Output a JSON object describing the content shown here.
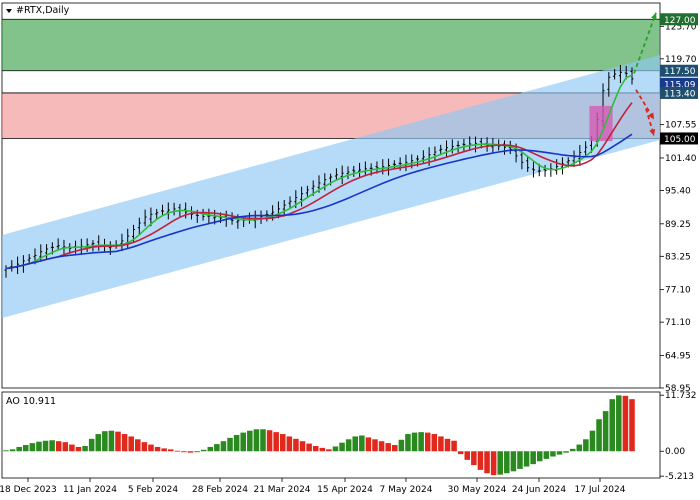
{
  "chart_data": {
    "type": "candlestick",
    "symbol_title": "#RTX,Daily",
    "price_axis": {
      "ylim": [
        58.95,
        130.0
      ],
      "ticks": [
        "125.70",
        "119.70",
        "107.55",
        "101.40",
        "95.40",
        "89.25",
        "83.25",
        "77.10",
        "71.10",
        "64.95",
        "58.95"
      ],
      "badges": [
        {
          "label": "127.00",
          "color": "#1f6f2f"
        },
        {
          "label": "117.50",
          "color": "#1f4f6f"
        },
        {
          "label": "115.09",
          "color": "#1a3a8c"
        },
        {
          "label": "113.40",
          "color": "#1f4f6f"
        },
        {
          "label": "105.00",
          "color": "#000000"
        }
      ]
    },
    "x_axis": {
      "categories": [
        "18 Dec 2023",
        "11 Jan 2024",
        "5 Feb 2024",
        "28 Feb 2024",
        "21 Mar 2024",
        "15 Apr 2024",
        "7 May 2024",
        "30 May 2024",
        "24 Jun 2024",
        "17 Jul 2024"
      ]
    },
    "zones": [
      {
        "name": "resistance",
        "from": 117.5,
        "to": 127.0,
        "color": "#2e9a3e"
      },
      {
        "name": "supply",
        "from": 105.0,
        "to": 113.4,
        "color": "#f08c8c"
      }
    ],
    "channel_color": "#8ec8f5",
    "close_series": [
      81.0,
      81.3,
      81.8,
      82.4,
      82.9,
      83.4,
      84.1,
      84.6,
      84.9,
      85.2,
      85.0,
      84.7,
      84.9,
      85.1,
      85.4,
      85.6,
      85.3,
      85.1,
      85.0,
      85.4,
      86.1,
      87.0,
      88.2,
      89.4,
      90.5,
      91.0,
      91.3,
      91.6,
      91.8,
      92.0,
      91.7,
      91.4,
      91.0,
      90.8,
      90.6,
      90.7,
      90.5,
      90.3,
      90.1,
      89.9,
      89.8,
      89.9,
      90.1,
      90.3,
      90.6,
      91.0,
      91.4,
      92.0,
      92.7,
      93.4,
      94.1,
      94.8,
      95.5,
      96.2,
      96.8,
      97.4,
      97.9,
      98.3,
      98.6,
      98.8,
      99.0,
      99.2,
      99.4,
      99.5,
      99.6,
      99.8,
      100.0,
      100.2,
      100.4,
      100.6,
      100.9,
      101.2,
      101.6,
      102.0,
      102.5,
      103.0,
      103.3,
      103.5,
      103.7,
      103.9,
      104.0,
      104.1,
      104.0,
      103.8,
      103.7,
      103.6,
      103.4,
      103.0,
      101.8,
      100.6,
      99.6,
      99.2,
      99.0,
      99.1,
      99.4,
      99.8,
      100.3,
      100.9,
      101.6,
      102.4,
      103.4,
      104.7,
      108.5,
      113.8,
      116.3,
      116.9,
      117.2,
      117.0,
      116.0
    ],
    "series": [
      {
        "name": "ma-fast",
        "color": "#2ebd3a",
        "period": 5
      },
      {
        "name": "ma-mid",
        "color": "#c0223a",
        "period": 10
      },
      {
        "name": "ma-slow",
        "color": "#1834c8",
        "period": 20
      }
    ],
    "forecast_color_up": "#2aa02a",
    "forecast_color_down": "#d22a1c",
    "indicator": {
      "label": "AO 10.911",
      "ylim": [
        -5.6,
        12.4
      ],
      "ticks": [
        "11.732",
        "0.00",
        "-5.213"
      ],
      "values": [
        0.2,
        0.4,
        0.9,
        1.3,
        1.7,
        2.0,
        2.2,
        2.3,
        2.1,
        1.9,
        1.4,
        0.9,
        1.1,
        2.6,
        3.6,
        4.2,
        4.3,
        4.1,
        3.6,
        3.1,
        2.5,
        1.9,
        1.4,
        0.9,
        0.6,
        0.4,
        0.1,
        -0.2,
        -0.3,
        -0.2,
        0.3,
        0.9,
        1.5,
        2.1,
        2.8,
        3.4,
        3.9,
        4.3,
        4.6,
        4.6,
        4.4,
        4.0,
        3.6,
        3.1,
        2.6,
        2.1,
        1.6,
        1.1,
        0.7,
        0.4,
        1.0,
        1.8,
        2.5,
        3.1,
        3.3,
        2.9,
        2.5,
        2.1,
        1.7,
        1.3,
        2.4,
        3.6,
        3.9,
        4.0,
        3.9,
        3.6,
        3.1,
        2.6,
        2.2,
        -0.6,
        -1.8,
        -2.9,
        -3.9,
        -4.6,
        -5.0,
        -4.9,
        -4.6,
        -4.2,
        -3.7,
        -3.2,
        -2.7,
        -2.1,
        -1.6,
        -1.1,
        -0.7,
        -0.3,
        0.5,
        1.4,
        2.5,
        4.3,
        6.7,
        8.4,
        10.9,
        11.7,
        11.6,
        10.9
      ]
    }
  }
}
